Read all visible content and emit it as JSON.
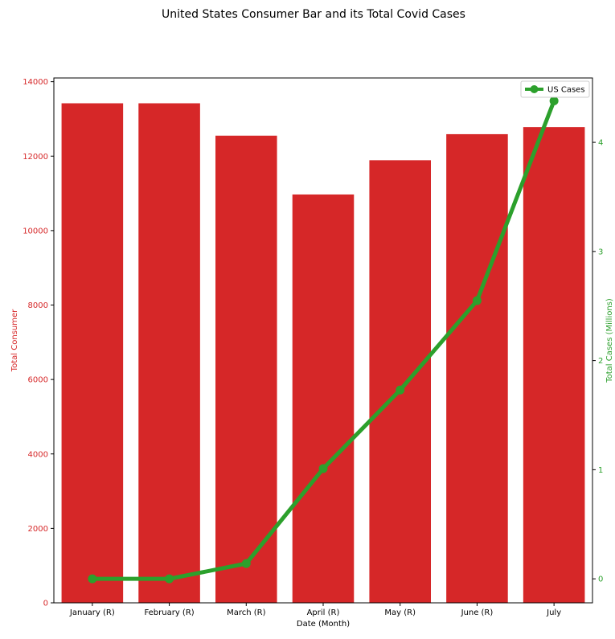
{
  "chart_data": {
    "type": "bar",
    "title": "United States Consumer Bar and its Total Covid Cases",
    "xlabel": "Date (Month)",
    "categories": [
      "January (R)",
      "February (R)",
      "March (R)",
      "April (R)",
      "May (R)",
      "June (R)",
      "July"
    ],
    "y_left": {
      "label": "Total Consumer",
      "ticks": [
        0,
        2000,
        4000,
        6000,
        8000,
        10000,
        12000,
        14000
      ],
      "ylim": [
        0,
        14100
      ],
      "color": "#d62728"
    },
    "y_right": {
      "label": "Total Cases (Millions)",
      "ticks": [
        0,
        1,
        2,
        3,
        4
      ],
      "ylim": [
        -0.22,
        4.59
      ],
      "color": "#2ca02c"
    },
    "series": [
      {
        "kind": "bar",
        "axis": "left",
        "color": "#d62728",
        "values": [
          13420,
          13420,
          12550,
          10970,
          11890,
          12590,
          12780
        ]
      },
      {
        "kind": "line",
        "axis": "right",
        "name": "US Cases",
        "color": "#2ca02c",
        "values": [
          0.0,
          0.0,
          0.14,
          1.01,
          1.73,
          2.55,
          4.38
        ]
      }
    ],
    "legend": {
      "position": "top-right",
      "entries": [
        "US Cases"
      ]
    },
    "grid": false
  }
}
